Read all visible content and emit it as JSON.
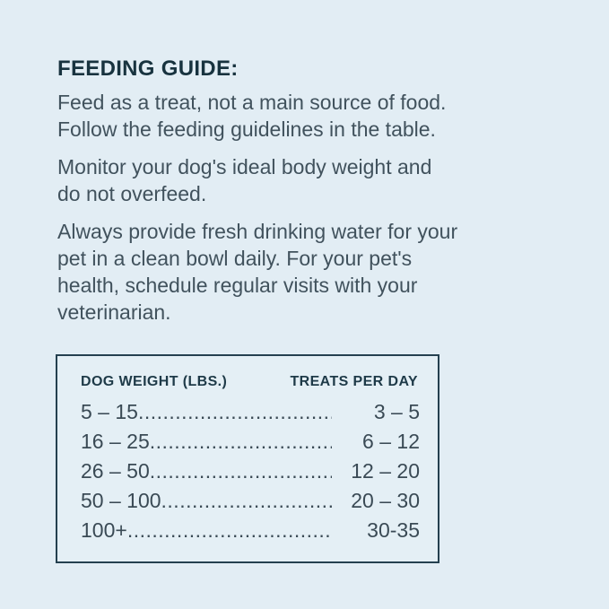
{
  "page": {
    "background_color": "#e2edf4",
    "text_color": "#41525d",
    "heading_color": "#18333f",
    "heading": "FEEDING GUIDE:",
    "paragraphs": [
      {
        "lines": [
          "Feed as a treat, not a main source of food.",
          "Follow the feeding guidelines in the table."
        ]
      },
      {
        "lines": [
          "Monitor your dog's ideal body weight and",
          "do not overfeed."
        ]
      },
      {
        "lines": [
          "Always provide fresh drinking water for your",
          "pet in a clean bowl daily. For your pet's",
          "health, schedule regular visits with your",
          "veterinarian."
        ]
      }
    ]
  },
  "table": {
    "border_color": "#24404f",
    "header_left": "DOG WEIGHT (LBS.)",
    "header_right": "TREATS PER DAY",
    "leader": "................................................................................................",
    "rows": [
      {
        "weight": "5 – 15",
        "treats": "3 – 5"
      },
      {
        "weight": "16 – 25",
        "treats": "6 – 12"
      },
      {
        "weight": "26 – 50",
        "treats": "12 – 20"
      },
      {
        "weight": "50 – 100",
        "treats": "20 – 30"
      },
      {
        "weight": "100+",
        "treats": "30-35"
      }
    ]
  }
}
